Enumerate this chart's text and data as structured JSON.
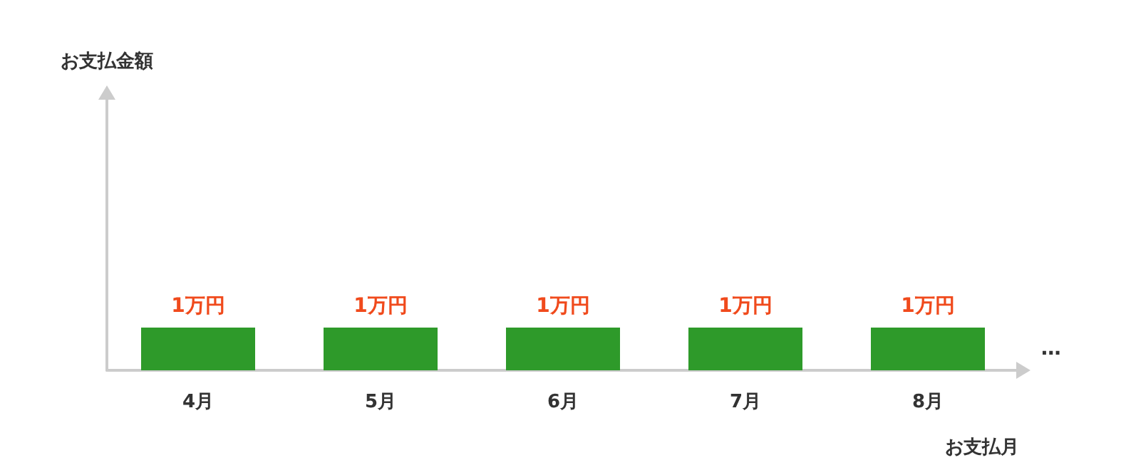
{
  "chart_data": {
    "type": "bar",
    "ylabel": "お支払金額",
    "xlabel": "お支払月",
    "categories": [
      "4月",
      "5月",
      "6月",
      "7月",
      "8月"
    ],
    "values": [
      1,
      1,
      1,
      1,
      1
    ],
    "value_labels": [
      "1万円",
      "1万円",
      "1万円",
      "1万円",
      "1万円"
    ],
    "color": "#2e9a2a",
    "ylim": [
      0,
      6.4
    ],
    "tick_labels": "x",
    "grid": false,
    "annotations": [
      "…"
    ]
  }
}
